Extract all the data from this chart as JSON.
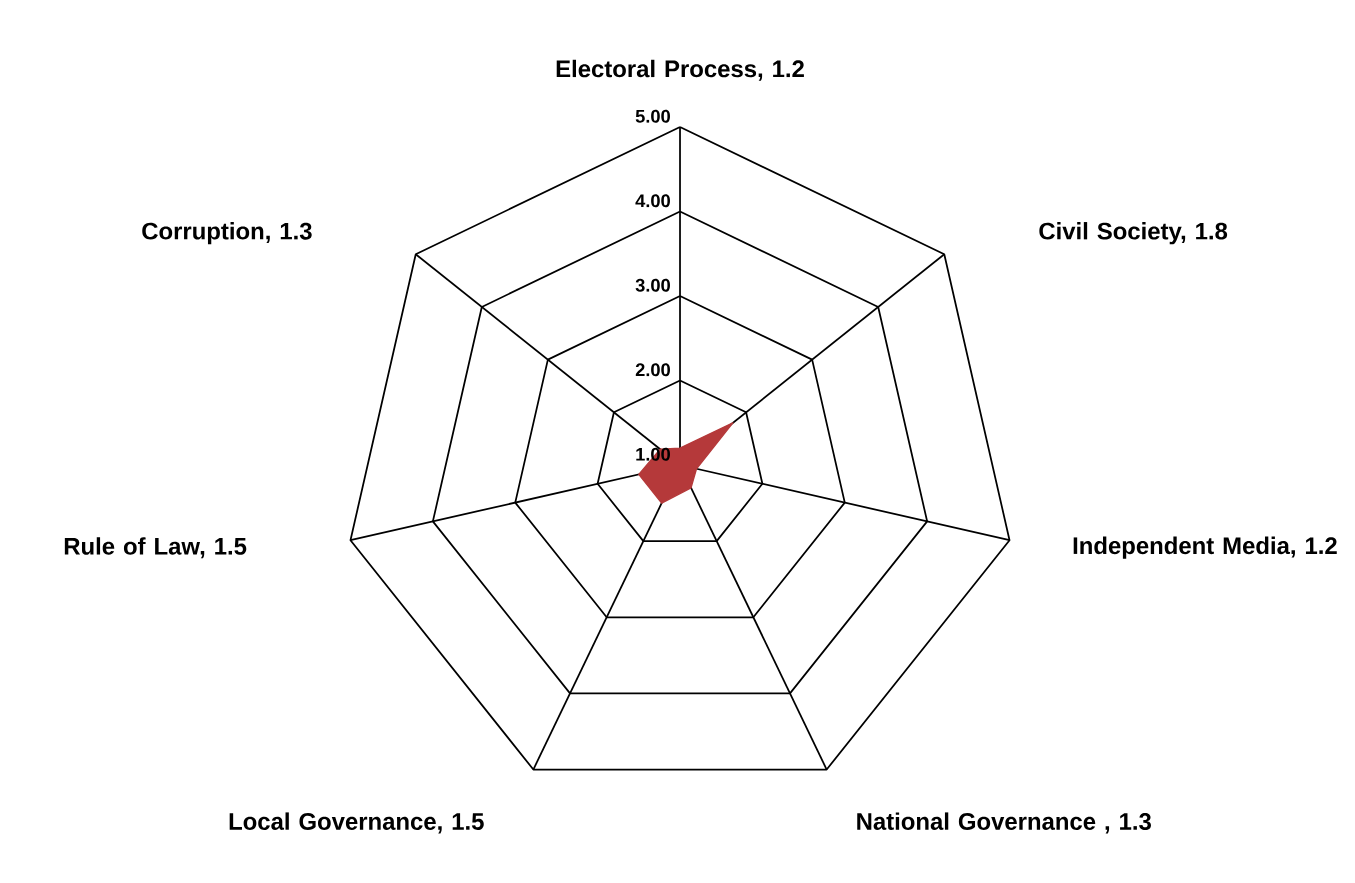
{
  "chart_data": {
    "type": "radar",
    "categories": [
      "Electoral Process, 1.2",
      "Civil Society, 1.8",
      "Independent Media, 1.2",
      "National Governance , 1.3",
      "Local Governance, 1.5",
      "Rule of Law, 1.5",
      "Corruption, 1.3"
    ],
    "series": [
      {
        "color": "#b5393a",
        "values": [
          1.2,
          1.8,
          1.2,
          1.3,
          1.5,
          1.5,
          1.3
        ]
      }
    ],
    "ylim": [
      1,
      5
    ],
    "yticks": [
      {
        "value": 1,
        "label": "1.00"
      },
      {
        "value": 2,
        "label": "2.00"
      },
      {
        "value": 3,
        "label": "3.00"
      },
      {
        "value": 4,
        "label": "4.00"
      },
      {
        "value": 5,
        "label": "5.00"
      }
    ]
  }
}
